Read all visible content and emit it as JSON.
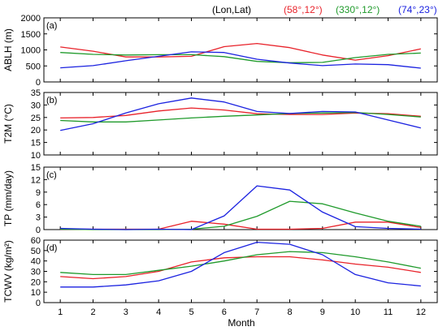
{
  "chart_data": [
    {
      "type": "line",
      "panel_label": "(a)",
      "ylabel": "ABLH (m)",
      "ylim": [
        0,
        2000
      ],
      "yticks": [
        0,
        500,
        1000,
        1500,
        2000
      ],
      "x": [
        1,
        2,
        3,
        4,
        5,
        6,
        7,
        8,
        9,
        10,
        11,
        12
      ],
      "series": [
        {
          "name": "(58°,12°)",
          "color": "#e8222a",
          "values": [
            1090,
            960,
            780,
            780,
            800,
            1100,
            1200,
            1070,
            840,
            680,
            820,
            1030
          ]
        },
        {
          "name": "(330°,12°)",
          "color": "#1f9a2b",
          "values": [
            920,
            860,
            840,
            850,
            850,
            790,
            640,
            600,
            610,
            760,
            860,
            900
          ]
        },
        {
          "name": "(74°,23°)",
          "color": "#1b22e0",
          "values": [
            440,
            510,
            660,
            800,
            940,
            920,
            710,
            590,
            510,
            560,
            540,
            430
          ]
        }
      ]
    },
    {
      "type": "line",
      "panel_label": "(b)",
      "ylabel": "T2M (°C)",
      "ylim": [
        10,
        35
      ],
      "yticks": [
        10,
        15,
        20,
        25,
        30,
        35
      ],
      "x": [
        1,
        2,
        3,
        4,
        5,
        6,
        7,
        8,
        9,
        10,
        11,
        12
      ],
      "series": [
        {
          "name": "(58°,12°)",
          "color": "#e8222a",
          "values": [
            24.8,
            25.0,
            25.8,
            27.6,
            28.8,
            28.0,
            26.5,
            26.2,
            26.2,
            26.8,
            26.5,
            25.5
          ]
        },
        {
          "name": "(330°,12°)",
          "color": "#1f9a2b",
          "values": [
            23.8,
            23.2,
            23.2,
            24.0,
            24.8,
            25.5,
            26.0,
            26.6,
            26.8,
            27.0,
            26.2,
            25.2
          ]
        },
        {
          "name": "(74°,23°)",
          "color": "#1b22e0",
          "values": [
            19.8,
            22.5,
            26.8,
            30.5,
            32.8,
            31.2,
            27.4,
            26.6,
            27.4,
            27.2,
            24.0,
            20.8
          ]
        }
      ]
    },
    {
      "type": "line",
      "panel_label": "(c)",
      "ylabel": "TP (mm/day)",
      "ylim": [
        0,
        15
      ],
      "yticks": [
        0,
        3,
        6,
        9,
        12,
        15
      ],
      "x": [
        1,
        2,
        3,
        4,
        5,
        6,
        7,
        8,
        9,
        10,
        11,
        12
      ],
      "series": [
        {
          "name": "(58°,12°)",
          "color": "#e8222a",
          "values": [
            0.1,
            0.1,
            0.1,
            0.1,
            2.0,
            1.3,
            0.1,
            0.1,
            0.3,
            1.8,
            1.8,
            0.5
          ]
        },
        {
          "name": "(330°,12°)",
          "color": "#1f9a2b",
          "values": [
            0.1,
            0.0,
            0.0,
            0.0,
            0.1,
            0.8,
            3.2,
            6.8,
            6.2,
            4.0,
            2.0,
            0.8
          ]
        },
        {
          "name": "(74°,23°)",
          "color": "#1b22e0",
          "values": [
            0.3,
            0.1,
            0.0,
            0.1,
            0.0,
            3.3,
            10.5,
            9.5,
            4.2,
            0.7,
            0.3,
            0.1
          ]
        }
      ]
    },
    {
      "type": "line",
      "panel_label": "(d)",
      "ylabel": "TCWV (kg/m²)",
      "xlabel": "Month",
      "ylim": [
        0,
        60
      ],
      "yticks": [
        0,
        10,
        20,
        30,
        40,
        50,
        60
      ],
      "x": [
        1,
        2,
        3,
        4,
        5,
        6,
        7,
        8,
        9,
        10,
        11,
        12
      ],
      "series": [
        {
          "name": "(58°,12°)",
          "color": "#e8222a",
          "values": [
            25,
            23,
            25,
            30,
            39,
            43,
            44,
            44,
            41,
            37,
            34,
            29
          ]
        },
        {
          "name": "(330°,12°)",
          "color": "#1f9a2b",
          "values": [
            29,
            27,
            27,
            31,
            35,
            40,
            46,
            49,
            48,
            44,
            39,
            33
          ]
        },
        {
          "name": "(74°,23°)",
          "color": "#1b22e0",
          "values": [
            15,
            15,
            17,
            21,
            30,
            48,
            58,
            56,
            46,
            27,
            19,
            16
          ]
        }
      ]
    }
  ],
  "legend": {
    "header": "(Lon,Lat)",
    "entries": [
      {
        "label": "(58°,12°)",
        "color": "#e8222a"
      },
      {
        "label": "(330°,12°)",
        "color": "#1f9a2b"
      },
      {
        "label": "(74°,23°)",
        "color": "#1b22e0"
      }
    ]
  },
  "x_ticks": [
    1,
    2,
    3,
    4,
    5,
    6,
    7,
    8,
    9,
    10,
    11,
    12
  ],
  "xlabel": "Month"
}
